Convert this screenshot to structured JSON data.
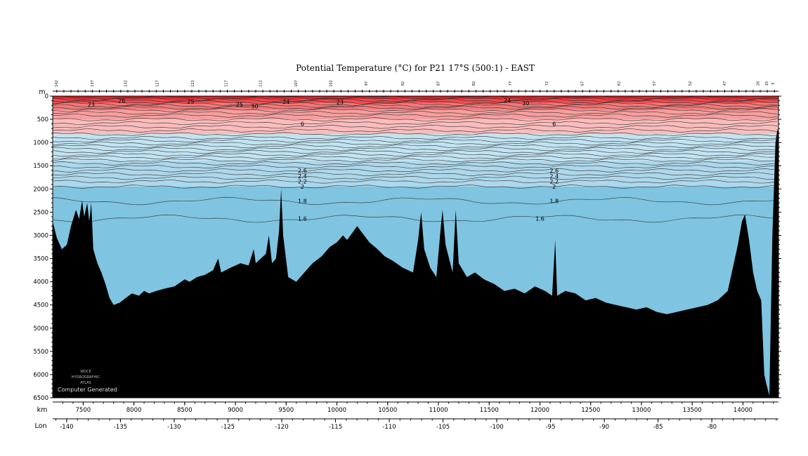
{
  "chart_data": {
    "type": "section",
    "title": "Potential Temperature (°C) for P21 17°S (500:1) - EAST",
    "y_unit": "m",
    "x_unit": "km",
    "lon_label": "Lon",
    "ylim": [
      0,
      6500
    ],
    "xlim": [
      7200,
      14350
    ],
    "lonlim": [
      -141.3,
      -73.8
    ],
    "y_ticks": [
      0,
      500,
      1000,
      1500,
      2000,
      2500,
      3000,
      3500,
      4000,
      4500,
      5000,
      5500,
      6000,
      6500
    ],
    "y_tick_labels": [
      "0",
      "500",
      "1000",
      "1500",
      "2000",
      "2500",
      "3000",
      "3500",
      "4000",
      "4500",
      "5000",
      "5500",
      "6000",
      "6500"
    ],
    "x_ticks": [
      7500,
      8000,
      8500,
      9000,
      9500,
      10000,
      10500,
      11000,
      11500,
      12000,
      12500,
      13000,
      13500,
      14000
    ],
    "x_tick_labels": [
      "7500",
      "8000",
      "8500",
      "9000",
      "9500",
      "10000",
      "10500",
      "11000",
      "11500",
      "12000",
      "12500",
      "13000",
      "13500",
      "14000"
    ],
    "lon_ticks": [
      -140,
      -135,
      -130,
      -125,
      -120,
      -115,
      -110,
      -105,
      -100,
      -95,
      -90,
      -85,
      -80
    ],
    "lon_tick_labels": [
      "-140",
      "-135",
      "-130",
      "-125",
      "-120",
      "-115",
      "-110",
      "-105",
      "-100",
      "-95",
      "-90",
      "-85",
      "-80"
    ],
    "stations": [
      {
        "x": 7250,
        "label": "142"
      },
      {
        "x": 7600,
        "label": "137"
      },
      {
        "x": 7930,
        "label": "132"
      },
      {
        "x": 8240,
        "label": "127"
      },
      {
        "x": 8590,
        "label": "122"
      },
      {
        "x": 8920,
        "label": "117"
      },
      {
        "x": 9260,
        "label": "112"
      },
      {
        "x": 9610,
        "label": "107"
      },
      {
        "x": 9950,
        "label": "102"
      },
      {
        "x": 10300,
        "label": "97"
      },
      {
        "x": 10660,
        "label": "92"
      },
      {
        "x": 11010,
        "label": "87"
      },
      {
        "x": 11360,
        "label": "82"
      },
      {
        "x": 11720,
        "label": "77"
      },
      {
        "x": 12080,
        "label": "72"
      },
      {
        "x": 12430,
        "label": "67"
      },
      {
        "x": 12790,
        "label": "62"
      },
      {
        "x": 13140,
        "label": "57"
      },
      {
        "x": 13490,
        "label": "52"
      },
      {
        "x": 13830,
        "label": "47"
      },
      {
        "x": 14160,
        "label": "26"
      },
      {
        "x": 14245,
        "label": "15"
      },
      {
        "x": 14310,
        "label": "5"
      }
    ],
    "color_bands": [
      {
        "from": 0,
        "to": 60,
        "color": "#e8202a"
      },
      {
        "from": 60,
        "to": 150,
        "color": "#ee4a4c"
      },
      {
        "from": 150,
        "to": 300,
        "color": "#f3797a"
      },
      {
        "from": 300,
        "to": 500,
        "color": "#f79e9e"
      },
      {
        "from": 500,
        "to": 820,
        "color": "#f9bcbc"
      },
      {
        "from": 820,
        "to": 1400,
        "color": "#c1e3f1"
      },
      {
        "from": 1400,
        "to": 1950,
        "color": "#add7ea"
      },
      {
        "from": 1950,
        "to": 6500,
        "color": "#7fc4e0"
      }
    ],
    "contour_depths": [
      30,
      60,
      90,
      130,
      170,
      210,
      250,
      300,
      360,
      420,
      500,
      580,
      660,
      740,
      820,
      900,
      960,
      1020,
      1080,
      1140,
      1200,
      1260,
      1320,
      1380,
      1450,
      1520,
      1600,
      1680,
      1760,
      1840,
      1950
    ],
    "labelled_contours": [
      {
        "depth": 2260,
        "label": "1.8",
        "x_pos": [
          9660,
          12140
        ]
      },
      {
        "depth": 2640,
        "label": "1.6",
        "x_pos": [
          9660,
          12000
        ]
      },
      {
        "depth": 1950,
        "label": "2",
        "x_pos": [
          9660,
          12140
        ]
      },
      {
        "depth": 1840,
        "label": "2.2",
        "x_pos": [
          9660,
          12140
        ]
      },
      {
        "depth": 1720,
        "label": "2.4",
        "x_pos": [
          9660,
          12140
        ]
      },
      {
        "depth": 1600,
        "label": "2.6",
        "x_pos": [
          9660,
          12140
        ]
      },
      {
        "depth": 600,
        "label": "6",
        "x_pos": [
          9660,
          12140
        ]
      }
    ],
    "surface_labels": [
      {
        "x": 7580,
        "depth": 180,
        "label": "23"
      },
      {
        "x": 7880,
        "depth": 100,
        "label": "26"
      },
      {
        "x": 8560,
        "depth": 110,
        "label": "25"
      },
      {
        "x": 9040,
        "depth": 180,
        "label": "25"
      },
      {
        "x": 9190,
        "depth": 220,
        "label": "30"
      },
      {
        "x": 9500,
        "depth": 120,
        "label": "24"
      },
      {
        "x": 10030,
        "depth": 130,
        "label": "23"
      },
      {
        "x": 11680,
        "depth": 90,
        "label": "24"
      },
      {
        "x": 11860,
        "depth": 150,
        "label": "30"
      }
    ],
    "bathymetry": [
      [
        7200,
        2700
      ],
      [
        7240,
        3050
      ],
      [
        7290,
        3300
      ],
      [
        7340,
        3200
      ],
      [
        7380,
        2800
      ],
      [
        7430,
        2450
      ],
      [
        7460,
        2650
      ],
      [
        7490,
        2250
      ],
      [
        7510,
        2600
      ],
      [
        7540,
        2300
      ],
      [
        7560,
        2700
      ],
      [
        7580,
        2300
      ],
      [
        7600,
        3300
      ],
      [
        7640,
        3600
      ],
      [
        7680,
        3800
      ],
      [
        7720,
        4050
      ],
      [
        7760,
        4350
      ],
      [
        7800,
        4500
      ],
      [
        7860,
        4450
      ],
      [
        7920,
        4350
      ],
      [
        7980,
        4250
      ],
      [
        8050,
        4300
      ],
      [
        8100,
        4200
      ],
      [
        8150,
        4250
      ],
      [
        8220,
        4200
      ],
      [
        8300,
        4150
      ],
      [
        8400,
        4100
      ],
      [
        8500,
        3950
      ],
      [
        8550,
        4000
      ],
      [
        8620,
        3900
      ],
      [
        8700,
        3850
      ],
      [
        8780,
        3750
      ],
      [
        8830,
        3500
      ],
      [
        8860,
        3800
      ],
      [
        8950,
        3700
      ],
      [
        9050,
        3600
      ],
      [
        9130,
        3650
      ],
      [
        9180,
        3300
      ],
      [
        9200,
        3600
      ],
      [
        9250,
        3500
      ],
      [
        9300,
        3400
      ],
      [
        9330,
        3000
      ],
      [
        9360,
        3600
      ],
      [
        9400,
        3500
      ],
      [
        9430,
        2900
      ],
      [
        9450,
        2000
      ],
      [
        9470,
        3000
      ],
      [
        9520,
        3900
      ],
      [
        9600,
        4000
      ],
      [
        9680,
        3800
      ],
      [
        9760,
        3600
      ],
      [
        9850,
        3450
      ],
      [
        9930,
        3250
      ],
      [
        10000,
        3150
      ],
      [
        10060,
        3000
      ],
      [
        10100,
        3100
      ],
      [
        10150,
        2950
      ],
      [
        10200,
        2800
      ],
      [
        10250,
        2950
      ],
      [
        10320,
        3150
      ],
      [
        10400,
        3300
      ],
      [
        10470,
        3450
      ],
      [
        10550,
        3550
      ],
      [
        10650,
        3700
      ],
      [
        10750,
        3800
      ],
      [
        10800,
        3100
      ],
      [
        10830,
        2500
      ],
      [
        10860,
        3300
      ],
      [
        10920,
        3700
      ],
      [
        10980,
        3900
      ],
      [
        11020,
        2900
      ],
      [
        11040,
        2450
      ],
      [
        11070,
        3200
      ],
      [
        11140,
        3800
      ],
      [
        11170,
        2450
      ],
      [
        11200,
        3600
      ],
      [
        11280,
        3900
      ],
      [
        11360,
        3800
      ],
      [
        11450,
        3950
      ],
      [
        11550,
        4050
      ],
      [
        11650,
        4200
      ],
      [
        11750,
        4150
      ],
      [
        11850,
        4250
      ],
      [
        11950,
        4100
      ],
      [
        12050,
        4200
      ],
      [
        12120,
        4300
      ],
      [
        12150,
        3100
      ],
      [
        12170,
        4300
      ],
      [
        12250,
        4200
      ],
      [
        12350,
        4250
      ],
      [
        12450,
        4400
      ],
      [
        12550,
        4350
      ],
      [
        12650,
        4450
      ],
      [
        12750,
        4500
      ],
      [
        12850,
        4550
      ],
      [
        12950,
        4600
      ],
      [
        13050,
        4550
      ],
      [
        13150,
        4650
      ],
      [
        13250,
        4700
      ],
      [
        13350,
        4650
      ],
      [
        13450,
        4600
      ],
      [
        13550,
        4550
      ],
      [
        13650,
        4500
      ],
      [
        13750,
        4400
      ],
      [
        13850,
        4200
      ],
      [
        13900,
        3700
      ],
      [
        13950,
        3200
      ],
      [
        13990,
        2700
      ],
      [
        14020,
        2550
      ],
      [
        14060,
        3100
      ],
      [
        14100,
        3800
      ],
      [
        14140,
        4200
      ],
      [
        14180,
        4400
      ],
      [
        14210,
        6000
      ],
      [
        14230,
        6200
      ],
      [
        14260,
        6450
      ],
      [
        14290,
        3000
      ],
      [
        14320,
        1000
      ],
      [
        14340,
        700
      ],
      [
        14350,
        800
      ]
    ]
  },
  "watermark": {
    "line1": "WOCE",
    "line2": "HYDROGRAPHIC",
    "line3": "ATLAS",
    "line4": "Computer Generated"
  },
  "colors": {
    "bathymetry": "#000000",
    "contour": "#333333"
  }
}
